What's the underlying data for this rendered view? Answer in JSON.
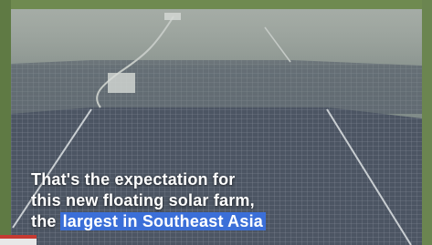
{
  "caption": {
    "lines": [
      "That's the expectation for",
      "this new floating solar farm,"
    ],
    "last_line": {
      "text": "the",
      "highlight": "largest in Southeast Asia"
    }
  }
}
